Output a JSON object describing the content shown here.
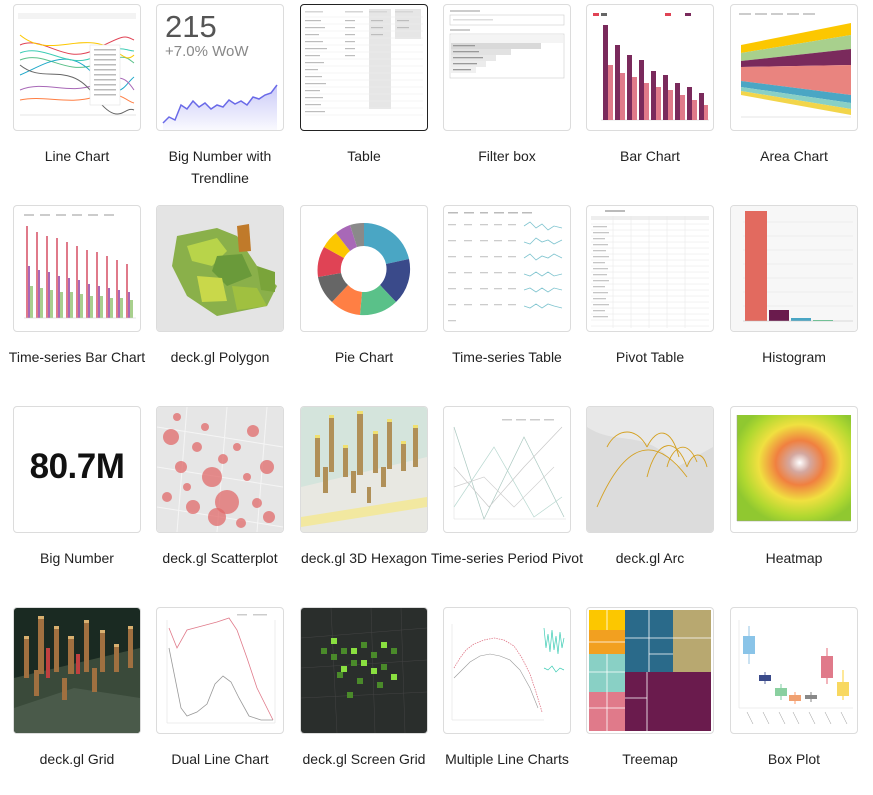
{
  "gallery": {
    "items": [
      {
        "label": "Line Chart",
        "thumb": "line-chart"
      },
      {
        "label": "Big Number with Trendline",
        "thumb": "big-number-trendline",
        "value": "215",
        "subtext": "+7.0% WoW"
      },
      {
        "label": "Table",
        "thumb": "table",
        "selected": true
      },
      {
        "label": "Filter box",
        "thumb": "filter-box"
      },
      {
        "label": "Bar Chart",
        "thumb": "bar-chart"
      },
      {
        "label": "Area Chart",
        "thumb": "area-chart"
      },
      {
        "label": "Time-series Bar Chart",
        "thumb": "time-series-bar-chart"
      },
      {
        "label": "deck.gl Polygon",
        "thumb": "deckgl-polygon"
      },
      {
        "label": "Pie Chart",
        "thumb": "pie-chart"
      },
      {
        "label": "Time-series Table",
        "thumb": "time-series-table"
      },
      {
        "label": "Pivot Table",
        "thumb": "pivot-table"
      },
      {
        "label": "Histogram",
        "thumb": "histogram"
      },
      {
        "label": "Big Number",
        "thumb": "big-number",
        "value": "80.7M"
      },
      {
        "label": "deck.gl Scatterplot",
        "thumb": "deckgl-scatterplot"
      },
      {
        "label": "deck.gl 3D Hexagon",
        "thumb": "deckgl-3d-hexagon"
      },
      {
        "label": "Time-series Period Pivot",
        "thumb": "time-series-period-pivot"
      },
      {
        "label": "deck.gl Arc",
        "thumb": "deckgl-arc"
      },
      {
        "label": "Heatmap",
        "thumb": "heatmap"
      },
      {
        "label": "deck.gl Grid",
        "thumb": "deckgl-grid"
      },
      {
        "label": "Dual Line Chart",
        "thumb": "dual-line-chart"
      },
      {
        "label": "deck.gl Screen Grid",
        "thumb": "deckgl-screen-grid"
      },
      {
        "label": "Multiple Line Charts",
        "thumb": "multiple-line-charts"
      },
      {
        "label": "Treemap",
        "thumb": "treemap"
      },
      {
        "label": "Box Plot",
        "thumb": "box-plot"
      }
    ]
  }
}
